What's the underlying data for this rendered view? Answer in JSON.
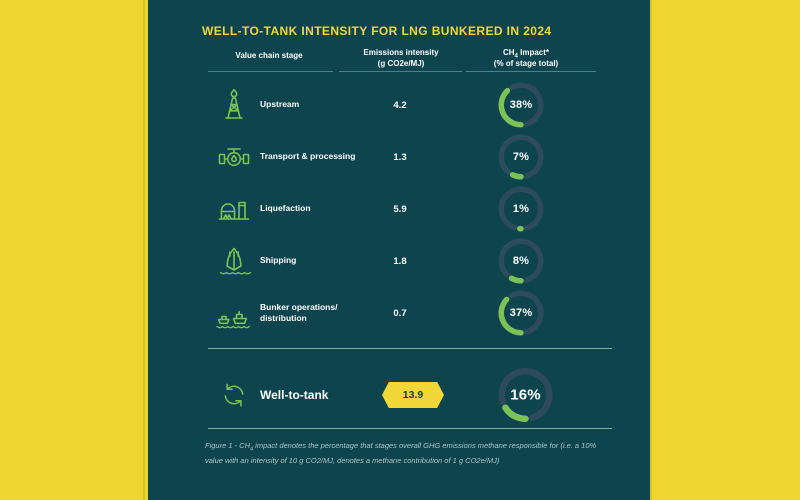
{
  "colors": {
    "background_yellow": "#F0D430",
    "seam_yellow": "#DCC125",
    "panel_teal": "#0D444E",
    "accent_yellow": "#F2D738",
    "green": "#7CC355",
    "gauge_track": "#2D4B5C",
    "underline_teal": "#44858A",
    "divider_green": "#7FAF9B",
    "text_white": "#FFFFFF",
    "footnote_teal": "#AAC8C8",
    "badge_text": "#0D3A46"
  },
  "header": {
    "title": "WELL-TO-TANK INTENSITY FOR LNG BUNKERED IN 2024"
  },
  "table": {
    "columns": [
      {
        "line1": "Value chain stage",
        "line2": ""
      },
      {
        "line1": "Emissions intensity",
        "line2": "(g CO2e/MJ)"
      },
      {
        "line1_prefix": "CH",
        "line1_sub": "4",
        "line1_suffix": " Impact*",
        "line2": "(% of stage total)"
      }
    ],
    "rows": [
      {
        "icon": "oil-derrick-icon",
        "stage": "Upstream",
        "stage_line2": "",
        "intensity": "4.2",
        "ch4_pct": 38,
        "ch4_label": "38%"
      },
      {
        "icon": "pipeline-valve-icon",
        "stage": "Transport & processing",
        "stage_line2": "",
        "intensity": "1.3",
        "ch4_pct": 7,
        "ch4_label": "7%"
      },
      {
        "icon": "liquefaction-plant-icon",
        "stage": "Liquefaction",
        "stage_line2": "",
        "intensity": "5.9",
        "ch4_pct": 1,
        "ch4_label": "1%"
      },
      {
        "icon": "ship-icon",
        "stage": "Shipping",
        "stage_line2": "",
        "intensity": "1.8",
        "ch4_pct": 8,
        "ch4_label": "8%"
      },
      {
        "icon": "bunker-ships-icon",
        "stage": "Bunker operations/",
        "stage_line2": "distribution",
        "intensity": "0.7",
        "ch4_pct": 37,
        "ch4_label": "37%"
      }
    ],
    "total": {
      "icon": "cycle-icon",
      "stage": "Well-to-tank",
      "intensity": "13.9",
      "ch4_pct": 16,
      "ch4_label": "16%"
    }
  },
  "footnote": {
    "prefix": "Figure 1 - CH",
    "sub": "4",
    "text": " impact denotes the percentage that stages overall GHG emissions methane responsible for (i.e. a 10% value with an intensity of 10 g CO2/MJ, denotes a methane contribution of 1 g CO2e/MJ)"
  },
  "chart_data": {
    "type": "table",
    "title": "WELL-TO-TANK INTENSITY FOR LNG BUNKERED IN 2024",
    "columns": [
      "Value chain stage",
      "Emissions intensity (g CO2e/MJ)",
      "CH4 Impact* (% of stage total)"
    ],
    "rows": [
      {
        "stage": "Upstream",
        "emissions_intensity_gCO2e_per_MJ": 4.2,
        "ch4_impact_pct": 38
      },
      {
        "stage": "Transport & processing",
        "emissions_intensity_gCO2e_per_MJ": 1.3,
        "ch4_impact_pct": 7
      },
      {
        "stage": "Liquefaction",
        "emissions_intensity_gCO2e_per_MJ": 5.9,
        "ch4_impact_pct": 1
      },
      {
        "stage": "Shipping",
        "emissions_intensity_gCO2e_per_MJ": 1.8,
        "ch4_impact_pct": 8
      },
      {
        "stage": "Bunker operations/distribution",
        "emissions_intensity_gCO2e_per_MJ": 0.7,
        "ch4_impact_pct": 37
      },
      {
        "stage": "Well-to-tank (total)",
        "emissions_intensity_gCO2e_per_MJ": 13.9,
        "ch4_impact_pct": 16
      }
    ],
    "gauge_style": "donut gauges; green arc sweeps from bottom (6 o'clock) up the left side, proportional to percent",
    "legend_position": "none",
    "grid": false
  }
}
